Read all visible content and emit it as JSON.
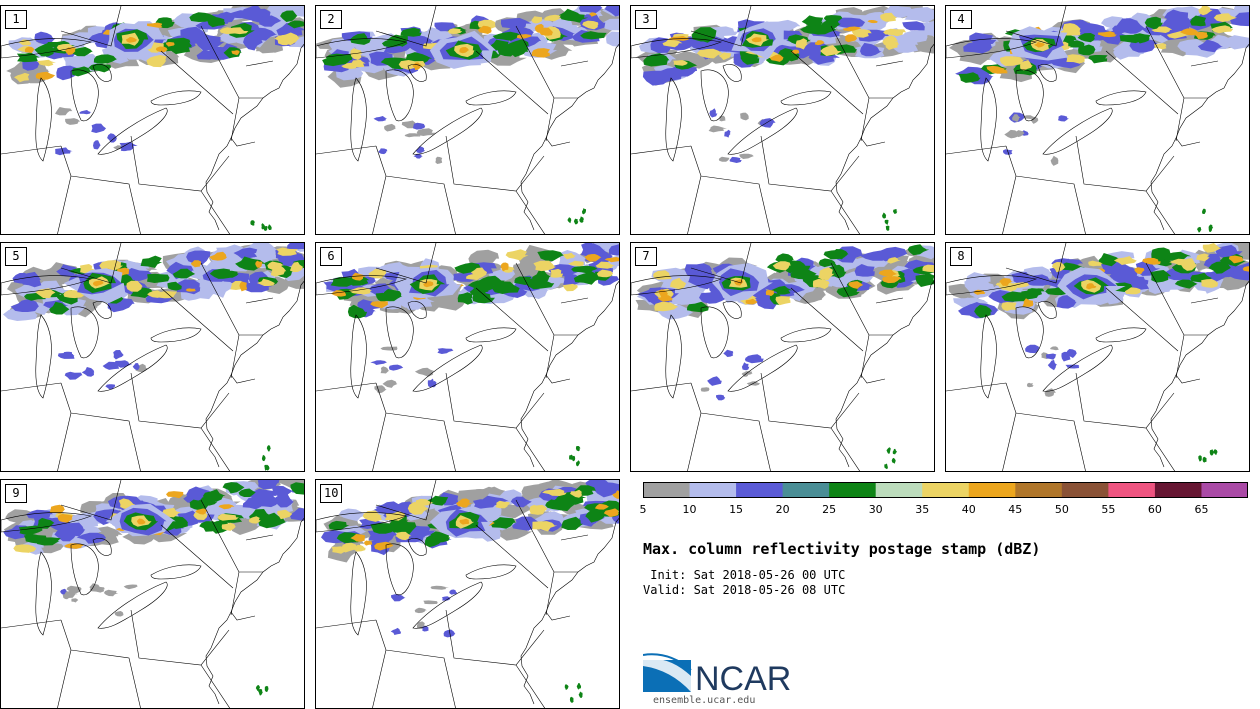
{
  "panels": [
    {
      "label": "1"
    },
    {
      "label": "2"
    },
    {
      "label": "3"
    },
    {
      "label": "4"
    },
    {
      "label": "5"
    },
    {
      "label": "6"
    },
    {
      "label": "7"
    },
    {
      "label": "8"
    },
    {
      "label": "9"
    },
    {
      "label": "10"
    }
  ],
  "colorbar": {
    "colors": [
      "#a0a0a0",
      "#b4bcec",
      "#5a5ad6",
      "#4a8e96",
      "#0e8416",
      "#bcdcbc",
      "#ecd464",
      "#eca61e",
      "#b0762a",
      "#8a5236",
      "#ee5480",
      "#661632",
      "#aa4aa6"
    ],
    "ticks": [
      "5",
      "10",
      "15",
      "20",
      "25",
      "30",
      "35",
      "40",
      "45",
      "50",
      "55",
      "60",
      "65"
    ]
  },
  "title": "Max. column reflectivity postage stamp (dBZ)",
  "init": " Init: Sat 2018-05-26 00 UTC",
  "valid": "Valid: Sat 2018-05-26 08 UTC",
  "logo": {
    "text": "NCAR",
    "url": "ensemble.ucar.edu",
    "colors": {
      "blue": "#0b6fb6",
      "dark": "#1f3a5f"
    }
  }
}
